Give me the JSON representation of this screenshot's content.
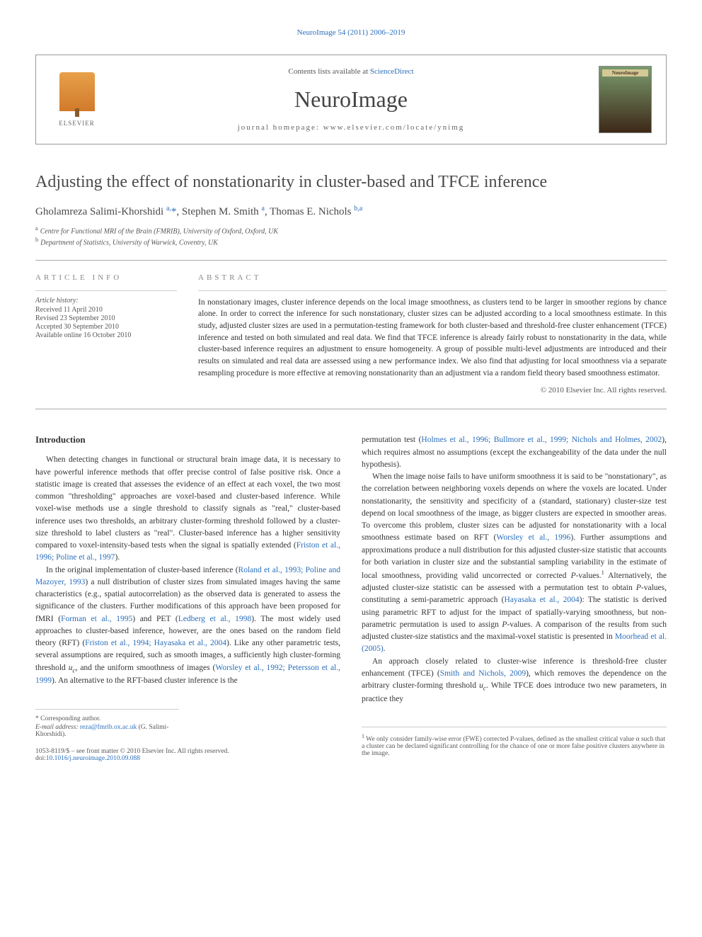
{
  "top_link": "NeuroImage 54 (2011) 2006–2019",
  "header": {
    "contents_prefix": "Contents lists available at ",
    "contents_link": "ScienceDirect",
    "journal_title": "NeuroImage",
    "homepage_prefix": "journal homepage: ",
    "homepage_url": "www.elsevier.com/locate/ynimg",
    "elsevier_label": "ELSEVIER",
    "cover_label": "NeuroImage"
  },
  "article": {
    "title": "Adjusting the effect of nonstationarity in cluster-based and TFCE inference",
    "authors_html": "Gholamreza Salimi-Khorshidi <sup>a,</sup><span class='star'>*</span>, Stephen M. Smith <sup>a</sup>, Thomas E. Nichols <sup>b,a</sup>",
    "affiliations": [
      {
        "sup": "a",
        "text": "Centre for Functional MRI of the Brain (FMRIB), University of Oxford, Oxford, UK"
      },
      {
        "sup": "b",
        "text": "Department of Statistics, University of Warwick, Coventry, UK"
      }
    ]
  },
  "info": {
    "heading": "ARTICLE INFO",
    "history_label": "Article history:",
    "lines": [
      "Received 11 April 2010",
      "Revised 23 September 2010",
      "Accepted 30 September 2010",
      "Available online 16 October 2010"
    ]
  },
  "abstract": {
    "heading": "ABSTRACT",
    "text": "In nonstationary images, cluster inference depends on the local image smoothness, as clusters tend to be larger in smoother regions by chance alone. In order to correct the inference for such nonstationary, cluster sizes can be adjusted according to a local smoothness estimate. In this study, adjusted cluster sizes are used in a permutation-testing framework for both cluster-based and threshold-free cluster enhancement (TFCE) inference and tested on both simulated and real data. We find that TFCE inference is already fairly robust to nonstationarity in the data, while cluster-based inference requires an adjustment to ensure homogeneity. A group of possible multi-level adjustments are introduced and their results on simulated and real data are assessed using a new performance index. We also find that adjusting for local smoothness via a separate resampling procedure is more effective at removing nonstationarity than an adjustment via a random field theory based smoothness estimator.",
    "copyright": "© 2010 Elsevier Inc. All rights reserved."
  },
  "body": {
    "intro_heading": "Introduction",
    "left_paras": [
      "When detecting changes in functional or structural brain image data, it is necessary to have powerful inference methods that offer precise control of false positive risk. Once a statistic image is created that assesses the evidence of an effect at each voxel, the two most common \"thresholding\" approaches are voxel-based and cluster-based inference. While voxel-wise methods use a single threshold to classify signals as \"real,\" cluster-based inference uses two thresholds, an arbitrary cluster-forming threshold followed by a cluster-size threshold to label clusters as \"real\". Cluster-based inference has a higher sensitivity compared to voxel-intensity-based tests when the signal is spatially extended (<span class='ref'>Friston et al., 1996; Poline et al., 1997</span>).",
      "In the original implementation of cluster-based inference (<span class='ref'>Roland et al., 1993; Poline and Mazoyer, 1993</span>) a null distribution of cluster sizes from simulated images having the same characteristics (e.g., spatial autocorrelation) as the observed data is generated to assess the significance of the clusters. Further modifications of this approach have been proposed for fMRI (<span class='ref'>Forman et al., 1995</span>) and PET (<span class='ref'>Ledberg et al., 1998</span>). The most widely used approaches to cluster-based inference, however, are the ones based on the random field theory (RFT) (<span class='ref'>Friston et al., 1994; Hayasaka et al., 2004</span>). Like any other parametric tests, several assumptions are required, such as smooth images, a sufficiently high cluster-forming threshold <i>u<sub>c</sub></i>, and the uniform smoothness of images (<span class='ref'>Worsley et al., 1992; Petersson et al., 1999</span>). An alternative to the RFT-based cluster inference is the"
    ],
    "right_paras": [
      "permutation test (<span class='ref'>Holmes et al., 1996; Bullmore et al., 1999; Nichols and Holmes, 2002</span>), which requires almost no assumptions (except the exchangeability of the data under the null hypothesis).",
      "When the image noise fails to have uniform smoothness it is said to be \"nonstationary\", as the correlation between neighboring voxels depends on where the voxels are located. Under nonstationarity, the sensitivity and specificity of a (standard, stationary) cluster-size test depend on local smoothness of the image, as bigger clusters are expected in smoother areas. To overcome this problem, cluster sizes can be adjusted for nonstationarity with a local smoothness estimate based on RFT (<span class='ref'>Worsley et al., 1996</span>). Further assumptions and approximations produce a null distribution for this adjusted cluster-size statistic that accounts for both variation in cluster size and the substantial sampling variability in the estimate of local smoothness, providing valid uncorrected or corrected <i>P</i>-values.<sup>1</sup> Alternatively, the adjusted cluster-size statistic can be assessed with a permutation test to obtain <i>P</i>-values, constituting a semi-parametric approach (<span class='ref'>Hayasaka et al., 2004</span>): The statistic is derived using parametric RFT to adjust for the impact of spatially-varying smoothness, but non-parametric permutation is used to assign <i>P</i>-values. A comparison of the results from such adjusted cluster-size statistics and the maximal-voxel statistic is presented in <span class='ref'>Moorhead et al. (2005)</span>.",
      "An approach closely related to cluster-wise inference is threshold-free cluster enhancement (TFCE) (<span class='ref'>Smith and Nichols, 2009</span>), which removes the dependence on the arbitrary cluster-forming threshold <i>u<sub>c</sub></i>. While TFCE does introduce two new parameters, in practice they"
    ]
  },
  "footnotes_left": {
    "corr_author": "* Corresponding author.",
    "email_label": "E-mail address:",
    "email": "reza@fmrib.ox.ac.uk",
    "email_name": "(G. Salimi-Khorshidi)."
  },
  "footnotes_right": {
    "note1": "We only consider family-wise error (FWE) corrected P-values, defined as the smallest critical value α such that a cluster can be declared significant controlling for the chance of one or more false positive clusters anywhere in the image.",
    "note1_sup": "1"
  },
  "bottom_meta": {
    "line1": "1053-8119/$ – see front matter © 2010 Elsevier Inc. All rights reserved.",
    "doi_prefix": "doi:",
    "doi": "10.1016/j.neuroimage.2010.09.088"
  },
  "colors": {
    "link": "#2a6ebb",
    "text": "#333333",
    "muted": "#555555",
    "heading": "#888888",
    "border": "#aaaaaa"
  }
}
